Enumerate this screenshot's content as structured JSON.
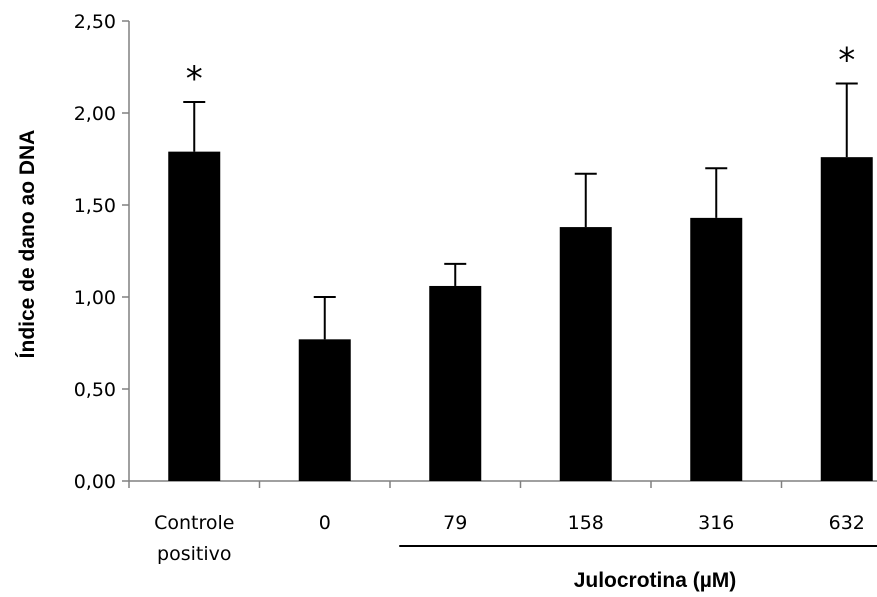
{
  "chart_data": {
    "type": "bar",
    "categories": [
      [
        "Controle",
        "positivo"
      ],
      [
        "0"
      ],
      [
        "79"
      ],
      [
        "158"
      ],
      [
        "316"
      ],
      [
        "632"
      ]
    ],
    "values": [
      1.79,
      0.77,
      1.06,
      1.38,
      1.43,
      1.76
    ],
    "error_bars": [
      0.27,
      0.23,
      0.12,
      0.29,
      0.27,
      0.4
    ],
    "significance": [
      "*",
      "",
      "",
      "",
      "",
      "*"
    ],
    "ylabel": "Índice de dano ao DNA",
    "xlabel": "Julocrotina (µM)",
    "xlabel_group": [
      2,
      5
    ],
    "ylim": [
      0,
      2.5
    ],
    "yticks": [
      0,
      0.5,
      1.0,
      1.5,
      2.0,
      2.5
    ],
    "ytick_labels": [
      "0,00",
      "0,50",
      "1,00",
      "1,50",
      "2,00",
      "2,50"
    ],
    "grid": false,
    "legend": "none",
    "colors": {
      "bar": "#000000",
      "axis": "#808080",
      "text": "#000000"
    }
  }
}
